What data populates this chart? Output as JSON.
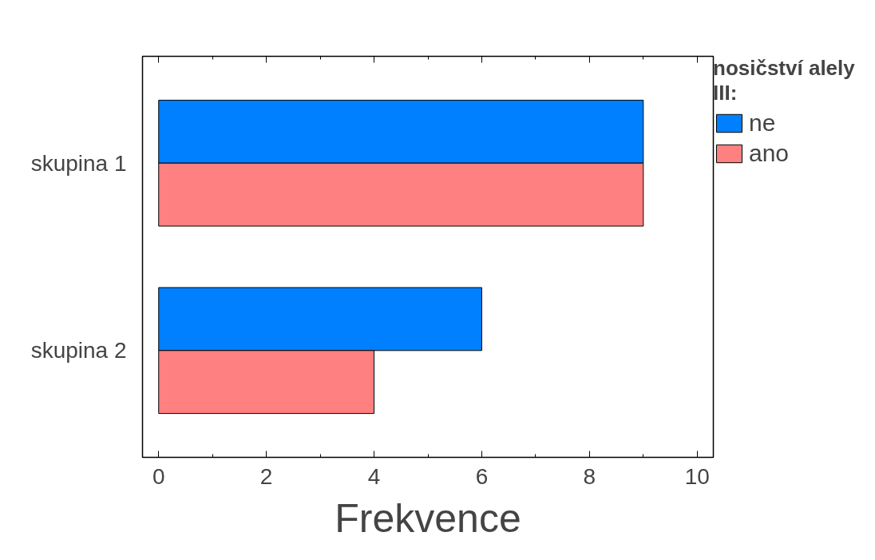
{
  "chart_data": {
    "type": "bar",
    "orientation": "horizontal",
    "xlabel": "Frekvence",
    "legend_title": "nosičství alely III:",
    "legend": "top right",
    "grid": false,
    "categories": [
      "skupina 1",
      "skupina 2"
    ],
    "series": [
      {
        "name": "ne",
        "color": "#0080ff",
        "values": [
          9,
          6
        ]
      },
      {
        "name": "ano",
        "color": "#ff8080",
        "values": [
          9,
          4
        ]
      }
    ],
    "xlim": [
      -0.3,
      10.3
    ],
    "xticks": [
      0,
      {
        "value": 1,
        "label": null
      },
      2,
      {
        "value": 3,
        "label": null
      },
      4,
      {
        "value": 5,
        "label": null
      },
      6,
      {
        "value": 7,
        "label": null
      },
      8,
      {
        "value": 9,
        "label": null
      },
      10
    ]
  }
}
